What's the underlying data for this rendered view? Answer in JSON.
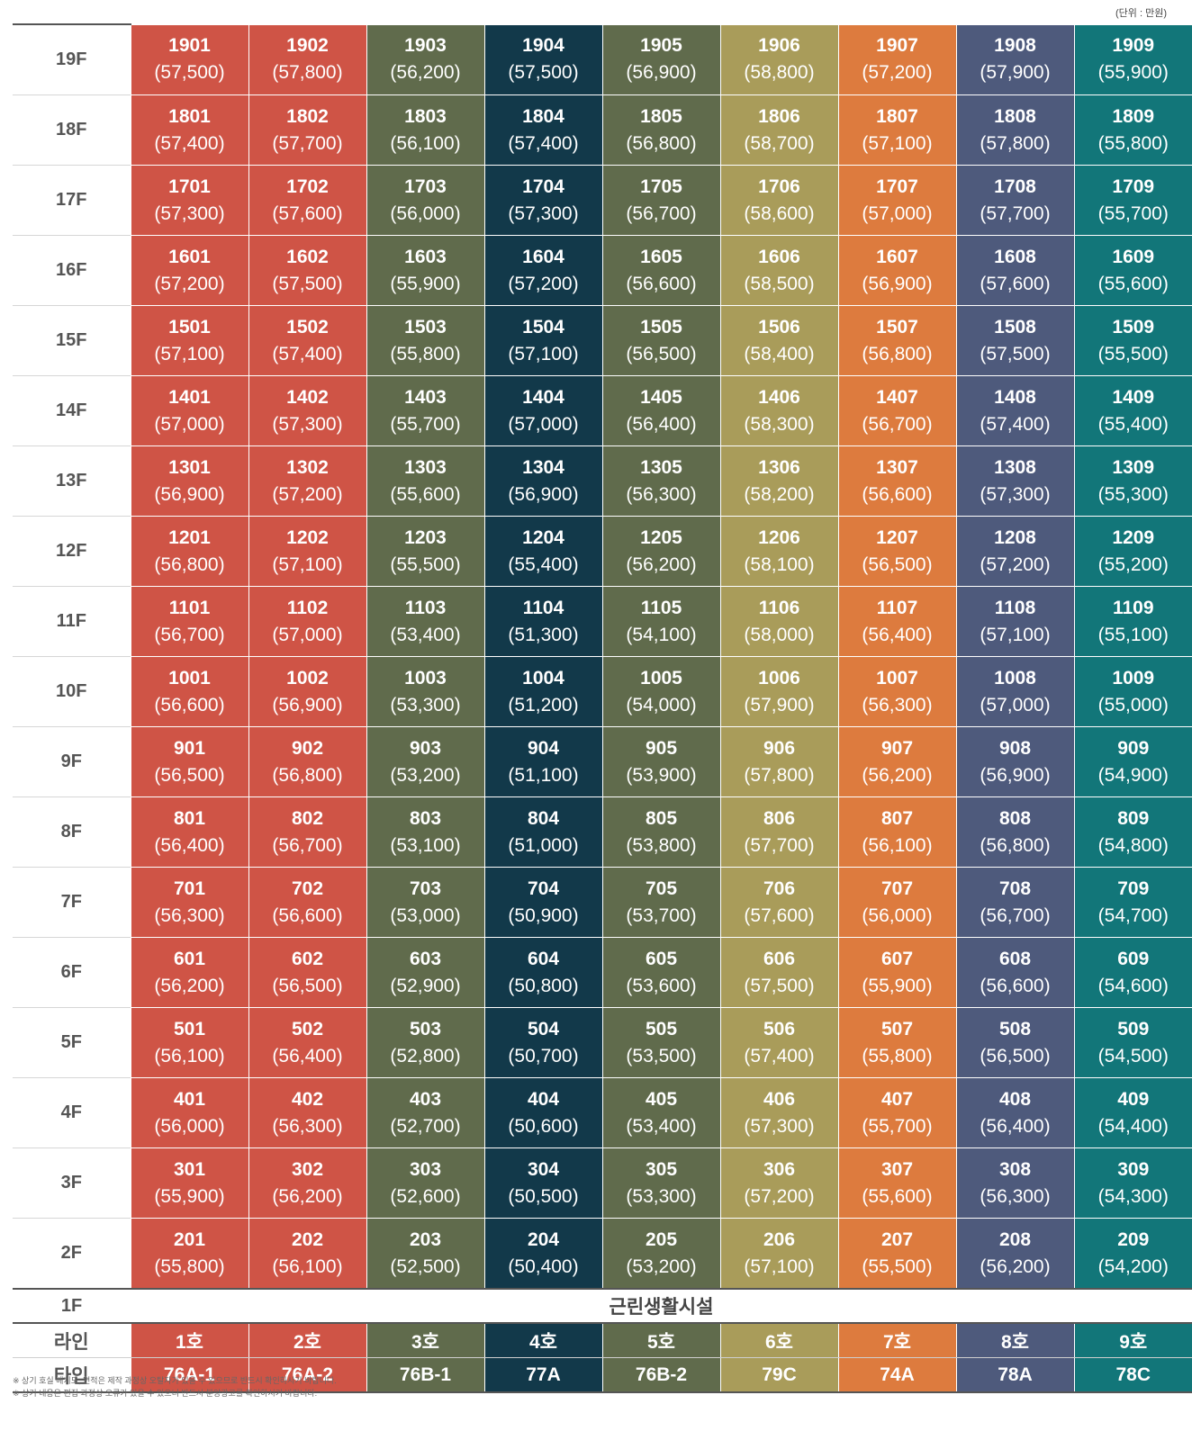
{
  "unit_note": "(단위 : 만원)",
  "colors": [
    "#cf5446",
    "#cf5446",
    "#606b4c",
    "#12394a",
    "#606b4c",
    "#a99c5a",
    "#dd7b3e",
    "#4e5a7c",
    "#127679"
  ],
  "floors": [
    {
      "label": "19F",
      "units": [
        {
          "no": "1901",
          "price": "(57,500)"
        },
        {
          "no": "1902",
          "price": "(57,800)"
        },
        {
          "no": "1903",
          "price": "(56,200)"
        },
        {
          "no": "1904",
          "price": "(57,500)"
        },
        {
          "no": "1905",
          "price": "(56,900)"
        },
        {
          "no": "1906",
          "price": "(58,800)"
        },
        {
          "no": "1907",
          "price": "(57,200)"
        },
        {
          "no": "1908",
          "price": "(57,900)"
        },
        {
          "no": "1909",
          "price": "(55,900)"
        }
      ]
    },
    {
      "label": "18F",
      "units": [
        {
          "no": "1801",
          "price": "(57,400)"
        },
        {
          "no": "1802",
          "price": "(57,700)"
        },
        {
          "no": "1803",
          "price": "(56,100)"
        },
        {
          "no": "1804",
          "price": "(57,400)"
        },
        {
          "no": "1805",
          "price": "(56,800)"
        },
        {
          "no": "1806",
          "price": "(58,700)"
        },
        {
          "no": "1807",
          "price": "(57,100)"
        },
        {
          "no": "1808",
          "price": "(57,800)"
        },
        {
          "no": "1809",
          "price": "(55,800)"
        }
      ]
    },
    {
      "label": "17F",
      "units": [
        {
          "no": "1701",
          "price": "(57,300)"
        },
        {
          "no": "1702",
          "price": "(57,600)"
        },
        {
          "no": "1703",
          "price": "(56,000)"
        },
        {
          "no": "1704",
          "price": "(57,300)"
        },
        {
          "no": "1705",
          "price": "(56,700)"
        },
        {
          "no": "1706",
          "price": "(58,600)"
        },
        {
          "no": "1707",
          "price": "(57,000)"
        },
        {
          "no": "1708",
          "price": "(57,700)"
        },
        {
          "no": "1709",
          "price": "(55,700)"
        }
      ]
    },
    {
      "label": "16F",
      "units": [
        {
          "no": "1601",
          "price": "(57,200)"
        },
        {
          "no": "1602",
          "price": "(57,500)"
        },
        {
          "no": "1603",
          "price": "(55,900)"
        },
        {
          "no": "1604",
          "price": "(57,200)"
        },
        {
          "no": "1605",
          "price": "(56,600)"
        },
        {
          "no": "1606",
          "price": "(58,500)"
        },
        {
          "no": "1607",
          "price": "(56,900)"
        },
        {
          "no": "1608",
          "price": "(57,600)"
        },
        {
          "no": "1609",
          "price": "(55,600)"
        }
      ]
    },
    {
      "label": "15F",
      "units": [
        {
          "no": "1501",
          "price": "(57,100)"
        },
        {
          "no": "1502",
          "price": "(57,400)"
        },
        {
          "no": "1503",
          "price": "(55,800)"
        },
        {
          "no": "1504",
          "price": "(57,100)"
        },
        {
          "no": "1505",
          "price": "(56,500)"
        },
        {
          "no": "1506",
          "price": "(58,400)"
        },
        {
          "no": "1507",
          "price": "(56,800)"
        },
        {
          "no": "1508",
          "price": "(57,500)"
        },
        {
          "no": "1509",
          "price": "(55,500)"
        }
      ]
    },
    {
      "label": "14F",
      "units": [
        {
          "no": "1401",
          "price": "(57,000)"
        },
        {
          "no": "1402",
          "price": "(57,300)"
        },
        {
          "no": "1403",
          "price": "(55,700)"
        },
        {
          "no": "1404",
          "price": "(57,000)"
        },
        {
          "no": "1405",
          "price": "(56,400)"
        },
        {
          "no": "1406",
          "price": "(58,300)"
        },
        {
          "no": "1407",
          "price": "(56,700)"
        },
        {
          "no": "1408",
          "price": "(57,400)"
        },
        {
          "no": "1409",
          "price": "(55,400)"
        }
      ]
    },
    {
      "label": "13F",
      "units": [
        {
          "no": "1301",
          "price": "(56,900)"
        },
        {
          "no": "1302",
          "price": "(57,200)"
        },
        {
          "no": "1303",
          "price": "(55,600)"
        },
        {
          "no": "1304",
          "price": "(56,900)"
        },
        {
          "no": "1305",
          "price": "(56,300)"
        },
        {
          "no": "1306",
          "price": "(58,200)"
        },
        {
          "no": "1307",
          "price": "(56,600)"
        },
        {
          "no": "1308",
          "price": "(57,300)"
        },
        {
          "no": "1309",
          "price": "(55,300)"
        }
      ]
    },
    {
      "label": "12F",
      "units": [
        {
          "no": "1201",
          "price": "(56,800)"
        },
        {
          "no": "1202",
          "price": "(57,100)"
        },
        {
          "no": "1203",
          "price": "(55,500)"
        },
        {
          "no": "1204",
          "price": "(55,400)"
        },
        {
          "no": "1205",
          "price": "(56,200)"
        },
        {
          "no": "1206",
          "price": "(58,100)"
        },
        {
          "no": "1207",
          "price": "(56,500)"
        },
        {
          "no": "1208",
          "price": "(57,200)"
        },
        {
          "no": "1209",
          "price": "(55,200)"
        }
      ]
    },
    {
      "label": "11F",
      "units": [
        {
          "no": "1101",
          "price": "(56,700)"
        },
        {
          "no": "1102",
          "price": "(57,000)"
        },
        {
          "no": "1103",
          "price": "(53,400)"
        },
        {
          "no": "1104",
          "price": "(51,300)"
        },
        {
          "no": "1105",
          "price": "(54,100)"
        },
        {
          "no": "1106",
          "price": "(58,000)"
        },
        {
          "no": "1107",
          "price": "(56,400)"
        },
        {
          "no": "1108",
          "price": "(57,100)"
        },
        {
          "no": "1109",
          "price": "(55,100)"
        }
      ]
    },
    {
      "label": "10F",
      "units": [
        {
          "no": "1001",
          "price": "(56,600)"
        },
        {
          "no": "1002",
          "price": "(56,900)"
        },
        {
          "no": "1003",
          "price": "(53,300)"
        },
        {
          "no": "1004",
          "price": "(51,200)"
        },
        {
          "no": "1005",
          "price": "(54,000)"
        },
        {
          "no": "1006",
          "price": "(57,900)"
        },
        {
          "no": "1007",
          "price": "(56,300)"
        },
        {
          "no": "1008",
          "price": "(57,000)"
        },
        {
          "no": "1009",
          "price": "(55,000)"
        }
      ]
    },
    {
      "label": "9F",
      "units": [
        {
          "no": "901",
          "price": "(56,500)"
        },
        {
          "no": "902",
          "price": "(56,800)"
        },
        {
          "no": "903",
          "price": "(53,200)"
        },
        {
          "no": "904",
          "price": "(51,100)"
        },
        {
          "no": "905",
          "price": "(53,900)"
        },
        {
          "no": "906",
          "price": "(57,800)"
        },
        {
          "no": "907",
          "price": "(56,200)"
        },
        {
          "no": "908",
          "price": "(56,900)"
        },
        {
          "no": "909",
          "price": "(54,900)"
        }
      ]
    },
    {
      "label": "8F",
      "units": [
        {
          "no": "801",
          "price": "(56,400)"
        },
        {
          "no": "802",
          "price": "(56,700)"
        },
        {
          "no": "803",
          "price": "(53,100)"
        },
        {
          "no": "804",
          "price": "(51,000)"
        },
        {
          "no": "805",
          "price": "(53,800)"
        },
        {
          "no": "806",
          "price": "(57,700)"
        },
        {
          "no": "807",
          "price": "(56,100)"
        },
        {
          "no": "808",
          "price": "(56,800)"
        },
        {
          "no": "809",
          "price": "(54,800)"
        }
      ]
    },
    {
      "label": "7F",
      "units": [
        {
          "no": "701",
          "price": "(56,300)"
        },
        {
          "no": "702",
          "price": "(56,600)"
        },
        {
          "no": "703",
          "price": "(53,000)"
        },
        {
          "no": "704",
          "price": "(50,900)"
        },
        {
          "no": "705",
          "price": "(53,700)"
        },
        {
          "no": "706",
          "price": "(57,600)"
        },
        {
          "no": "707",
          "price": "(56,000)"
        },
        {
          "no": "708",
          "price": "(56,700)"
        },
        {
          "no": "709",
          "price": "(54,700)"
        }
      ]
    },
    {
      "label": "6F",
      "units": [
        {
          "no": "601",
          "price": "(56,200)"
        },
        {
          "no": "602",
          "price": "(56,500)"
        },
        {
          "no": "603",
          "price": "(52,900)"
        },
        {
          "no": "604",
          "price": "(50,800)"
        },
        {
          "no": "605",
          "price": "(53,600)"
        },
        {
          "no": "606",
          "price": "(57,500)"
        },
        {
          "no": "607",
          "price": "(55,900)"
        },
        {
          "no": "608",
          "price": "(56,600)"
        },
        {
          "no": "609",
          "price": "(54,600)"
        }
      ]
    },
    {
      "label": "5F",
      "units": [
        {
          "no": "501",
          "price": "(56,100)"
        },
        {
          "no": "502",
          "price": "(56,400)"
        },
        {
          "no": "503",
          "price": "(52,800)"
        },
        {
          "no": "504",
          "price": "(50,700)"
        },
        {
          "no": "505",
          "price": "(53,500)"
        },
        {
          "no": "506",
          "price": "(57,400)"
        },
        {
          "no": "507",
          "price": "(55,800)"
        },
        {
          "no": "508",
          "price": "(56,500)"
        },
        {
          "no": "509",
          "price": "(54,500)"
        }
      ]
    },
    {
      "label": "4F",
      "units": [
        {
          "no": "401",
          "price": "(56,000)"
        },
        {
          "no": "402",
          "price": "(56,300)"
        },
        {
          "no": "403",
          "price": "(52,700)"
        },
        {
          "no": "404",
          "price": "(50,600)"
        },
        {
          "no": "405",
          "price": "(53,400)"
        },
        {
          "no": "406",
          "price": "(57,300)"
        },
        {
          "no": "407",
          "price": "(55,700)"
        },
        {
          "no": "408",
          "price": "(56,400)"
        },
        {
          "no": "409",
          "price": "(54,400)"
        }
      ]
    },
    {
      "label": "3F",
      "units": [
        {
          "no": "301",
          "price": "(55,900)"
        },
        {
          "no": "302",
          "price": "(56,200)"
        },
        {
          "no": "303",
          "price": "(52,600)"
        },
        {
          "no": "304",
          "price": "(50,500)"
        },
        {
          "no": "305",
          "price": "(53,300)"
        },
        {
          "no": "306",
          "price": "(57,200)"
        },
        {
          "no": "307",
          "price": "(55,600)"
        },
        {
          "no": "308",
          "price": "(56,300)"
        },
        {
          "no": "309",
          "price": "(54,300)"
        }
      ]
    },
    {
      "label": "2F",
      "units": [
        {
          "no": "201",
          "price": "(55,800)"
        },
        {
          "no": "202",
          "price": "(56,100)"
        },
        {
          "no": "203",
          "price": "(52,500)"
        },
        {
          "no": "204",
          "price": "(50,400)"
        },
        {
          "no": "205",
          "price": "(53,200)"
        },
        {
          "no": "206",
          "price": "(57,100)"
        },
        {
          "no": "207",
          "price": "(55,500)"
        },
        {
          "no": "208",
          "price": "(56,200)"
        },
        {
          "no": "209",
          "price": "(54,200)"
        }
      ]
    }
  ],
  "ground": {
    "label": "1F",
    "facility": "근린생활시설"
  },
  "line_row": {
    "label": "라인",
    "values": [
      "1호",
      "2호",
      "3호",
      "4호",
      "5호",
      "6호",
      "7호",
      "8호",
      "9호"
    ]
  },
  "type_row": {
    "label": "타입",
    "values": [
      "76A-1",
      "76A-2",
      "76B-1",
      "77A",
      "76B-2",
      "79C",
      "74A",
      "78A",
      "78C"
    ]
  },
  "notes": [
    "※ 상기 호실 배치도, 면적은 제작 과정상 오탈자가 있을 수 있으므로 반드시 확인하시기 바랍니다.",
    "※ 상기 내용은 편집 과정상 오류가 있을 수 있으니 반드시 분양광고를 확인하시기 바랍니다."
  ]
}
